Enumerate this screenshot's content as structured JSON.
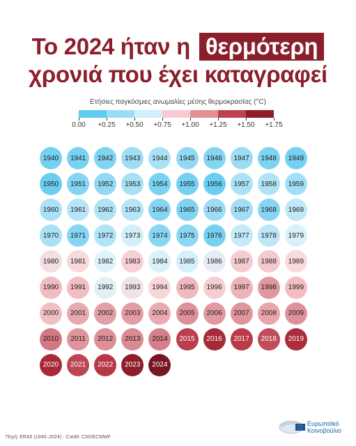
{
  "title": {
    "line1_prefix": "Το 2024 ήταν η",
    "line1_highlight": "θερμότερη",
    "line2": "χρονιά που έχει καταγραφεί"
  },
  "colors": {
    "accent": "#8b1e2b"
  },
  "chart_data": {
    "type": "heatmap",
    "title": "Το 2024 ήταν η θερμότερη χρονιά που έχει καταγραφεί",
    "legend_title": "Ετήσιες παγκόσμιες ανωμαλίες μέσης θερμοκρασίας (°C)",
    "legend_ticks": [
      "0.00",
      "+0.25",
      "+0.50",
      "+0.75",
      "+1.00",
      "+1.25",
      "+1.50",
      "+1.75"
    ],
    "legend_colors": [
      "#5ccdf0",
      "#9adcf3",
      "#d2effa",
      "#f6cbcf",
      "#e38f98",
      "#c0404f",
      "#8d1b29"
    ],
    "years": [
      1940,
      1941,
      1942,
      1943,
      1944,
      1945,
      1946,
      1947,
      1948,
      1949,
      1950,
      1951,
      1952,
      1953,
      1954,
      1955,
      1956,
      1957,
      1958,
      1959,
      1960,
      1961,
      1962,
      1963,
      1964,
      1965,
      1966,
      1967,
      1968,
      1969,
      1970,
      1971,
      1972,
      1973,
      1974,
      1975,
      1976,
      1977,
      1978,
      1979,
      1980,
      1981,
      1982,
      1983,
      1984,
      1985,
      1986,
      1987,
      1988,
      1989,
      1990,
      1991,
      1992,
      1993,
      1994,
      1995,
      1996,
      1997,
      1998,
      1999,
      2000,
      2001,
      2002,
      2003,
      2004,
      2005,
      2006,
      2007,
      2008,
      2009,
      2010,
      2011,
      2012,
      2013,
      2014,
      2015,
      2016,
      2017,
      2018,
      2019,
      2020,
      2021,
      2022,
      2023,
      2024
    ],
    "values": [
      0.16,
      0.18,
      0.2,
      0.3,
      0.33,
      0.26,
      0.21,
      0.29,
      0.19,
      0.16,
      0.13,
      0.21,
      0.26,
      0.32,
      0.18,
      0.16,
      0.12,
      0.34,
      0.35,
      0.31,
      0.33,
      0.37,
      0.35,
      0.37,
      0.22,
      0.2,
      0.29,
      0.31,
      0.22,
      0.4,
      0.33,
      0.22,
      0.36,
      0.46,
      0.23,
      0.24,
      0.17,
      0.42,
      0.39,
      0.48,
      0.58,
      0.6,
      0.5,
      0.64,
      0.48,
      0.47,
      0.53,
      0.66,
      0.67,
      0.6,
      0.73,
      0.72,
      0.52,
      0.56,
      0.61,
      0.74,
      0.65,
      0.77,
      0.92,
      0.72,
      0.72,
      0.83,
      0.89,
      0.9,
      0.82,
      0.96,
      0.92,
      0.94,
      0.85,
      0.96,
      1.05,
      0.94,
      0.97,
      1.0,
      1.03,
      1.21,
      1.33,
      1.22,
      1.17,
      1.3,
      1.32,
      1.19,
      1.23,
      1.48,
      1.6
    ]
  },
  "footer": {
    "source": "Πηγή: ERA5 (1940–2024) · Credit: C3S/ECMWF",
    "logo_line1": "Ευρωπαϊκό",
    "logo_line2": "Κοινοβούλιο"
  }
}
